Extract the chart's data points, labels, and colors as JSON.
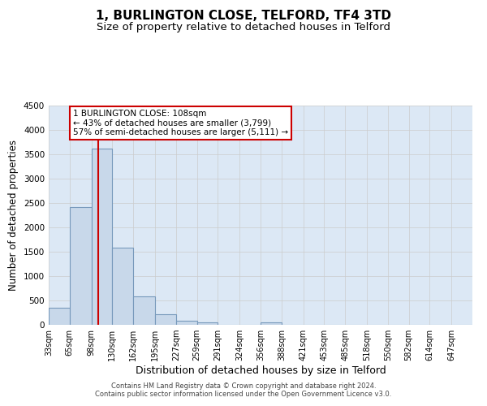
{
  "title": "1, BURLINGTON CLOSE, TELFORD, TF4 3TD",
  "subtitle": "Size of property relative to detached houses in Telford",
  "xlabel": "Distribution of detached houses by size in Telford",
  "ylabel": "Number of detached properties",
  "footer_line1": "Contains HM Land Registry data © Crown copyright and database right 2024.",
  "footer_line2": "Contains public sector information licensed under the Open Government Licence v3.0.",
  "annotation_title": "1 BURLINGTON CLOSE: 108sqm",
  "annotation_line1": "← 43% of detached houses are smaller (3,799)",
  "annotation_line2": "57% of semi-detached houses are larger (5,111) →",
  "property_size": 108,
  "bin_edges": [
    33,
    65,
    98,
    130,
    162,
    195,
    227,
    259,
    291,
    324,
    356,
    388,
    421,
    453,
    485,
    518,
    550,
    582,
    614,
    647,
    679
  ],
  "bar_values": [
    350,
    2420,
    3620,
    1590,
    590,
    215,
    90,
    55,
    0,
    0,
    55,
    0,
    0,
    0,
    0,
    0,
    0,
    0,
    0,
    0
  ],
  "bar_color": "#c8d8ea",
  "bar_edge_color": "#7799bb",
  "bar_linewidth": 0.8,
  "redline_color": "#cc0000",
  "annotation_box_color": "#cc0000",
  "ylim": [
    0,
    4500
  ],
  "yticks": [
    0,
    500,
    1000,
    1500,
    2000,
    2500,
    3000,
    3500,
    4000,
    4500
  ],
  "grid_color": "#cccccc",
  "bg_color": "#dce8f5",
  "title_fontsize": 11,
  "subtitle_fontsize": 9.5,
  "xlabel_fontsize": 9,
  "ylabel_fontsize": 8.5,
  "annotation_fontsize": 7.5,
  "tick_fontsize": 7,
  "ytick_fontsize": 7.5,
  "footer_fontsize": 6
}
